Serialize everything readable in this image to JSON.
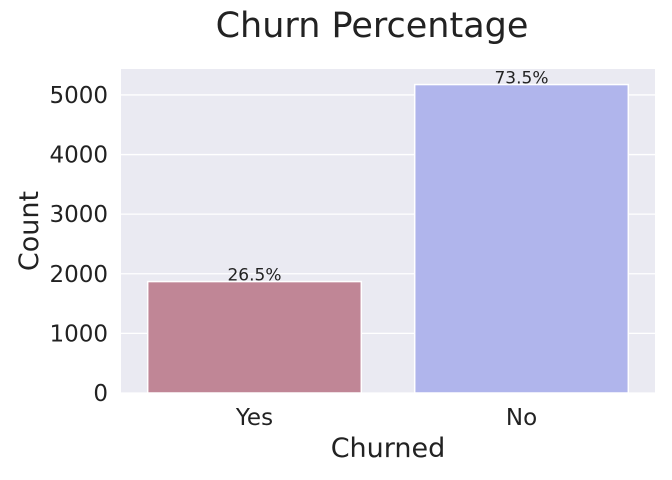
{
  "chart_data": {
    "type": "bar",
    "title": "Churn Percentage",
    "xlabel": "Churned",
    "ylabel": "Count",
    "categories": [
      "Yes",
      "No"
    ],
    "values": [
      1869,
      5174
    ],
    "data_labels": [
      "26.5%",
      "73.5%"
    ],
    "colors": [
      "#c08696",
      "#b0b5ec"
    ],
    "ylim": [
      0,
      5435
    ],
    "yticks": [
      0,
      1000,
      2000,
      3000,
      4000,
      5000
    ],
    "ytick_labels": [
      "0",
      "1000",
      "2000",
      "3000",
      "4000",
      "5000"
    ],
    "grid": true,
    "legend": "none",
    "background": "#eaeaf2"
  }
}
